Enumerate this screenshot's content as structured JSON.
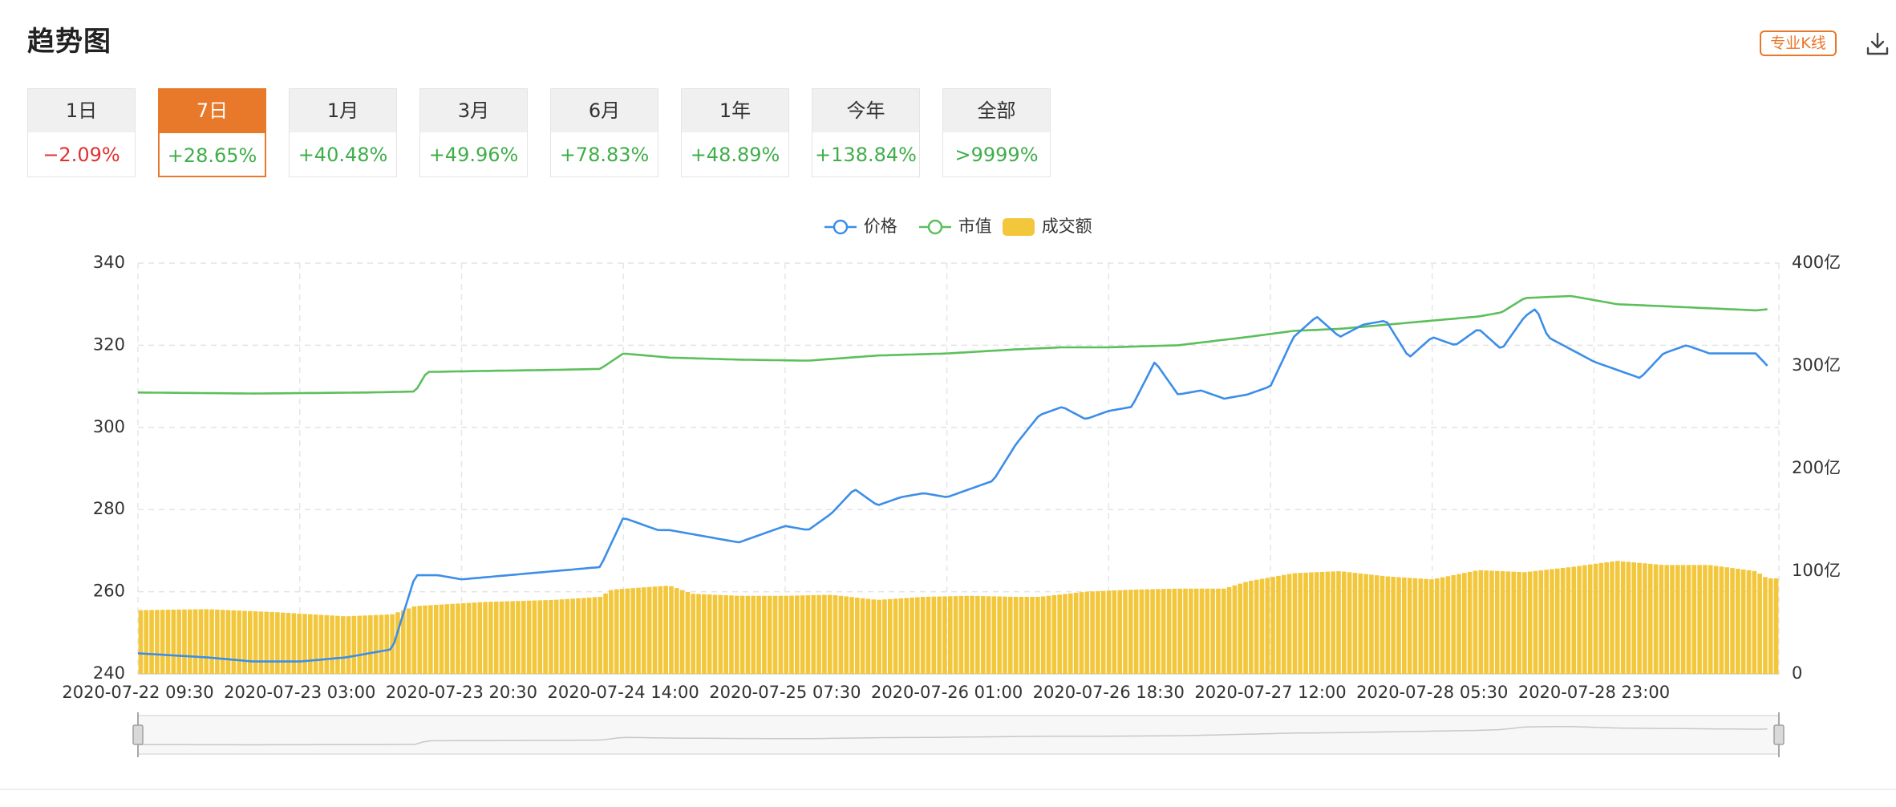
{
  "header": {
    "title": "趋势图",
    "pro_kline_label": "专业K线",
    "download_icon": "download-icon"
  },
  "tabs": [
    {
      "label": "1日",
      "change": "−2.09%",
      "trend": "down"
    },
    {
      "label": "7日",
      "change": "+28.65%",
      "trend": "up",
      "active": true
    },
    {
      "label": "1月",
      "change": "+40.48%",
      "trend": "up"
    },
    {
      "label": "3月",
      "change": "+49.96%",
      "trend": "up"
    },
    {
      "label": "6月",
      "change": "+78.83%",
      "trend": "up"
    },
    {
      "label": "1年",
      "change": "+48.89%",
      "trend": "up"
    },
    {
      "label": "今年",
      "change": "+138.84%",
      "trend": "up"
    },
    {
      "label": "全部",
      "change": ">9999%",
      "trend": "up"
    }
  ],
  "colors": {
    "accent": "#e8782a",
    "price": "#3d8ee8",
    "market_cap": "#5cbf5c",
    "volume": "#f3c73c",
    "up": "#3fae49",
    "down": "#e0312f"
  },
  "legend": {
    "price": "价格",
    "market_cap": "市值",
    "volume": "成交额"
  },
  "chart_data": {
    "type": "line",
    "xlabel": "",
    "ylabel_left": "",
    "ylabel_right": "",
    "x_ticks": [
      "2020-07-22 09:30",
      "2020-07-23 03:00",
      "2020-07-23 20:30",
      "2020-07-24 14:00",
      "2020-07-25 07:30",
      "2020-07-26 01:00",
      "2020-07-26 18:30",
      "2020-07-27 12:00",
      "2020-07-28 05:30",
      "2020-07-28 23:00"
    ],
    "y_left_ticks": [
      "240",
      "260",
      "280",
      "300",
      "320",
      "340"
    ],
    "y_right_ticks": [
      "0",
      "100亿",
      "200亿",
      "300亿",
      "400亿"
    ],
    "y_left_range": [
      240,
      340
    ],
    "y_right_range": [
      0,
      400
    ],
    "grid": true,
    "legend_position": "top-center",
    "x_range_days": [
      0,
      7.1
    ],
    "series": [
      {
        "name": "价格",
        "axis": "left",
        "x_days": [
          0,
          0.3,
          0.5,
          0.7,
          0.9,
          1.0,
          1.1,
          1.2,
          1.25,
          1.3,
          1.4,
          1.6,
          1.8,
          2.0,
          2.1,
          2.2,
          2.25,
          2.3,
          2.4,
          2.6,
          2.8,
          2.9,
          3.0,
          3.1,
          3.2,
          3.3,
          3.4,
          3.5,
          3.6,
          3.7,
          3.8,
          3.9,
          4.0,
          4.1,
          4.2,
          4.3,
          4.4,
          4.5,
          4.6,
          4.7,
          4.8,
          4.9,
          5.0,
          5.1,
          5.2,
          5.3,
          5.4,
          5.5,
          5.6,
          5.7,
          5.8,
          5.9,
          6.0,
          6.05,
          6.1,
          6.2,
          6.3,
          6.4,
          6.5,
          6.6,
          6.7,
          6.8,
          6.9,
          7.0,
          7.05
        ],
        "values": [
          245,
          244,
          243,
          243,
          244,
          245,
          246,
          264,
          264,
          264,
          263,
          264,
          265,
          266,
          278,
          276,
          275,
          275,
          274,
          272,
          276,
          275,
          279,
          285,
          281,
          283,
          284,
          283,
          285,
          287,
          296,
          303,
          305,
          302,
          304,
          305,
          316,
          308,
          309,
          307,
          308,
          310,
          322,
          327,
          322,
          325,
          326,
          317,
          322,
          320,
          324,
          319,
          327,
          329,
          322,
          319,
          316,
          314,
          312,
          318,
          320,
          318,
          318,
          318,
          315
        ]
      },
      {
        "name": "市值",
        "axis": "right",
        "x_days": [
          0,
          0.5,
          1.0,
          1.2,
          1.25,
          1.5,
          1.8,
          2.0,
          2.1,
          2.3,
          2.6,
          2.9,
          3.2,
          3.5,
          3.8,
          4.0,
          4.2,
          4.5,
          4.8,
          5.0,
          5.2,
          5.5,
          5.8,
          5.9,
          6.0,
          6.2,
          6.4,
          6.6,
          6.8,
          7.0,
          7.05
        ],
        "values": [
          274,
          273,
          274,
          275,
          294,
          295,
          296,
          297,
          312,
          308,
          306,
          305,
          310,
          312,
          316,
          318,
          318,
          320,
          328,
          334,
          336,
          342,
          348,
          352,
          366,
          368,
          360,
          358,
          356,
          354,
          355
        ]
      },
      {
        "name": "成交额",
        "type": "bar",
        "axis": "right",
        "x_days": [
          0,
          0.3,
          0.6,
          0.9,
          1.1,
          1.2,
          1.5,
          1.8,
          2.0,
          2.05,
          2.3,
          2.4,
          2.6,
          2.8,
          3.0,
          3.2,
          3.4,
          3.6,
          3.8,
          3.9,
          4.1,
          4.3,
          4.5,
          4.7,
          4.8,
          5.0,
          5.2,
          5.4,
          5.6,
          5.8,
          6.0,
          6.2,
          6.4,
          6.6,
          6.8,
          7.0,
          7.05
        ],
        "values": [
          62,
          63,
          60,
          56,
          58,
          66,
          70,
          72,
          75,
          82,
          86,
          78,
          76,
          76,
          77,
          72,
          75,
          76,
          75,
          75,
          80,
          82,
          83,
          83,
          90,
          98,
          100,
          95,
          92,
          101,
          99,
          104,
          110,
          106,
          106,
          100,
          93
        ]
      }
    ]
  }
}
